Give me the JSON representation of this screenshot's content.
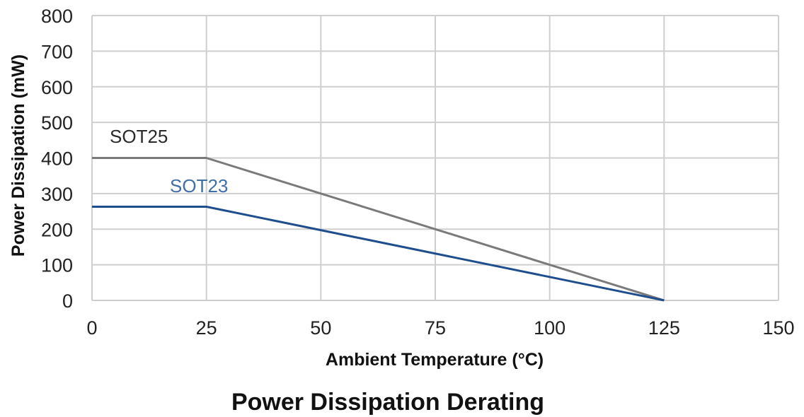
{
  "chart_data": {
    "type": "line",
    "title": "Power Dissipation Derating",
    "xlabel": "Ambient Temperature (°C)",
    "ylabel": "Power Dissipation (mW)",
    "xlim": [
      0,
      150
    ],
    "ylim": [
      0,
      800
    ],
    "xticks": [
      0,
      25,
      50,
      75,
      100,
      125,
      150
    ],
    "yticks": [
      0,
      100,
      200,
      300,
      400,
      500,
      600,
      700,
      800
    ],
    "grid": true,
    "legend": "inline labels",
    "series": [
      {
        "name": "SOT25",
        "color": "#7a7a7a",
        "x": [
          0,
          25,
          125
        ],
        "y": [
          400,
          400,
          0
        ]
      },
      {
        "name": "SOT23",
        "color": "#1f4e8c",
        "x": [
          0,
          25,
          125
        ],
        "y": [
          263,
          263,
          0
        ]
      }
    ]
  }
}
